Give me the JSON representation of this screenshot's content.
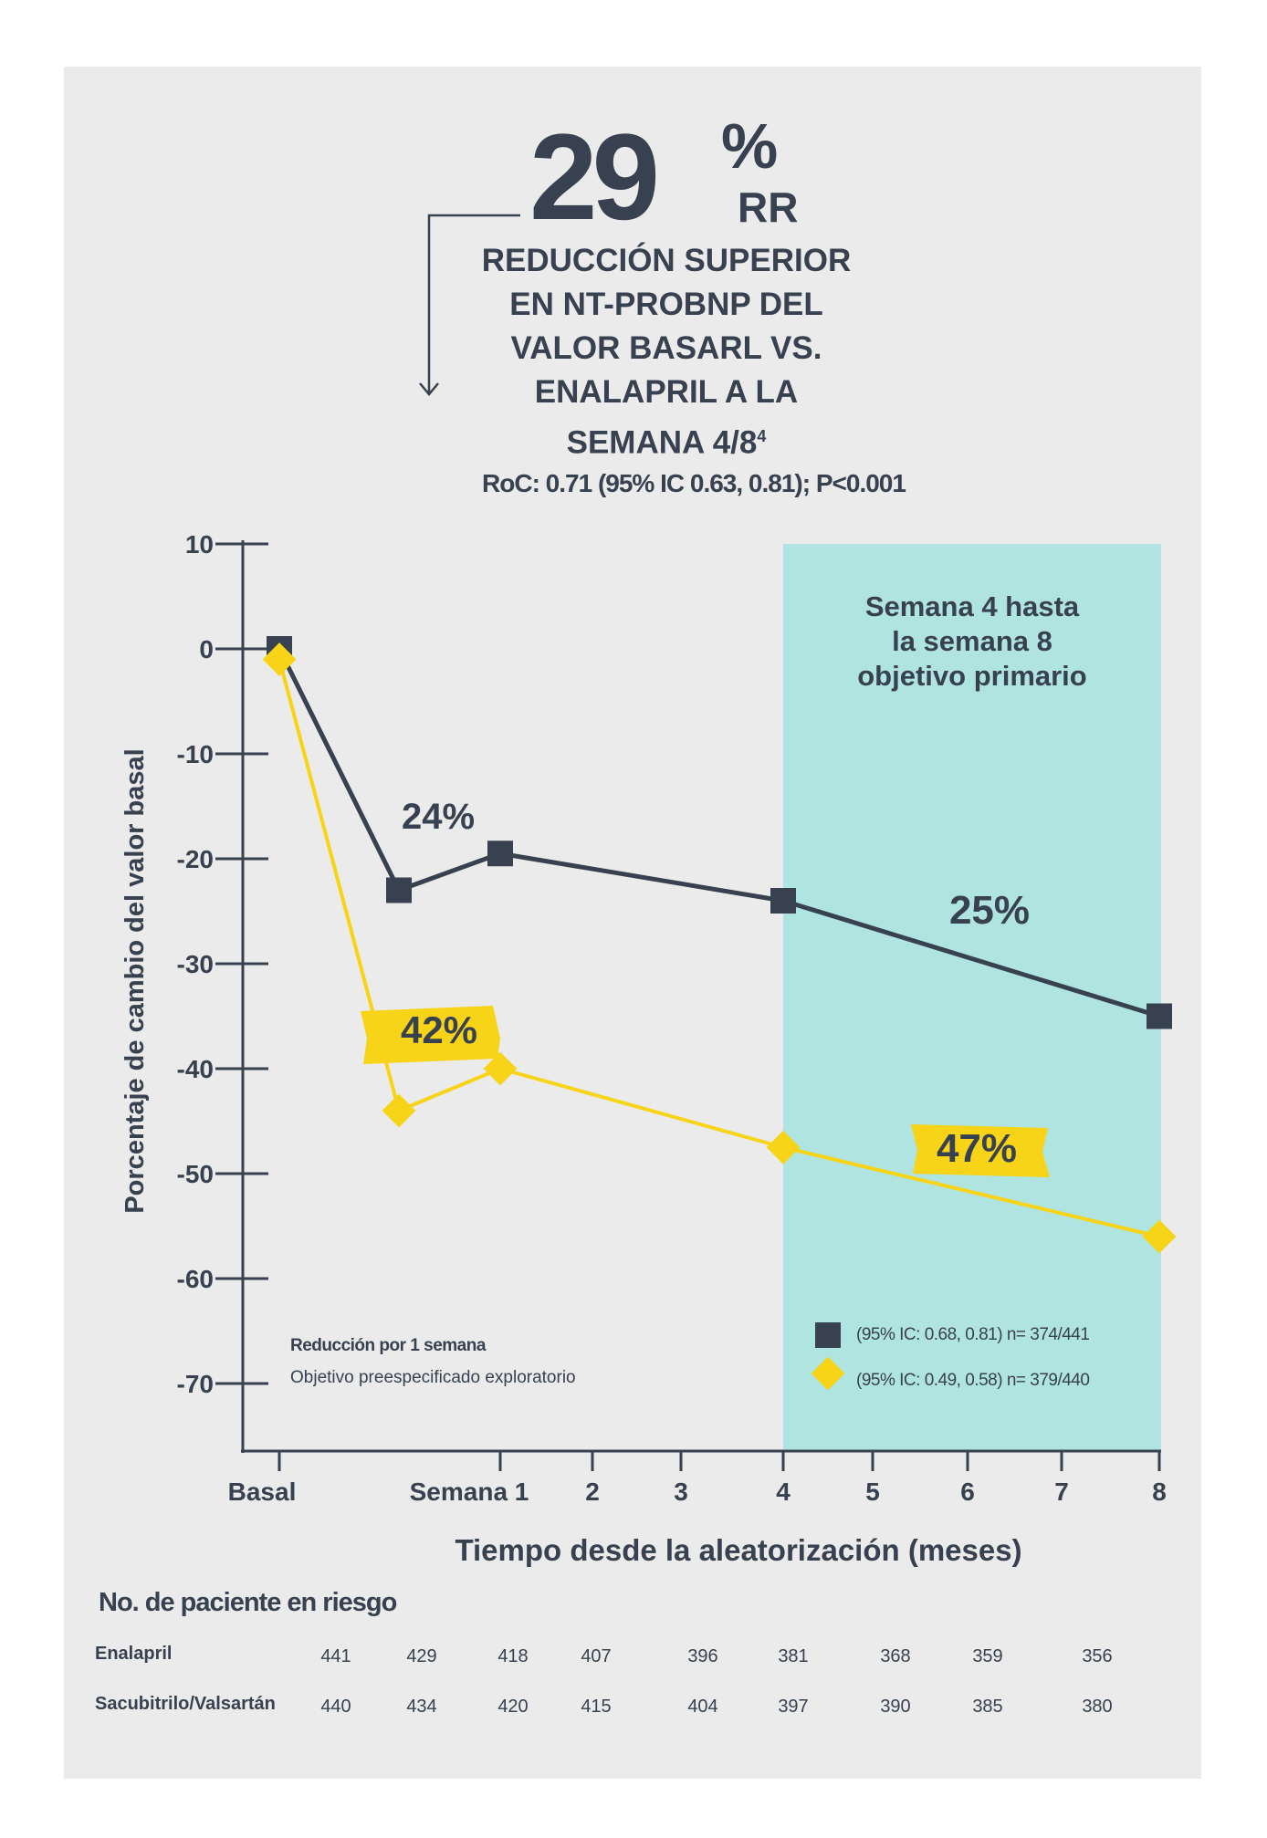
{
  "headline": {
    "number": "29",
    "percent": "%",
    "suffix": "RR",
    "subtitle_lines": [
      "REDUCCIÓN SUPERIOR",
      "EN NT-PROBNP DEL",
      "VALOR BASARL VS.",
      "ENALAPRIL A LA",
      "SEMANA 4/8"
    ],
    "subtitle_sup": "4",
    "roc_text": "RoC: 0.71 (95% IC 0.63, 0.81); P<0.001"
  },
  "colors": {
    "panel": "#ebebeb",
    "navy": "#37414f",
    "yellow": "#f7d417",
    "shade": "#b0e4e0"
  },
  "chart_data": {
    "type": "line",
    "ylabel": "Porcentaje de cambio del valor basal",
    "xlabel": "Tiempo desde la aleatorización (meses)",
    "ylim": [
      -77,
      10
    ],
    "y_ticks": [
      10,
      0,
      -10,
      -20,
      -30,
      -40,
      -50,
      -60,
      -70
    ],
    "x_tick_labels": [
      "Basal",
      "Semana 1",
      "2",
      "3",
      "4",
      "5",
      "6",
      "7",
      "8"
    ],
    "shaded_region": {
      "from": "4",
      "to": "8",
      "label_lines": [
        "Semana 4 hasta",
        "la semana 8",
        "objetivo primario"
      ]
    },
    "series": [
      {
        "marker": "square",
        "color": "#37414f",
        "legend": "(95% IC: 0.68, 0.81) n= 374/441",
        "points": [
          {
            "x": "Basal",
            "y": 0
          },
          {
            "x": "0.5",
            "y": -23
          },
          {
            "x": "Semana 1",
            "y": -19.5
          },
          {
            "x": "4",
            "y": -24
          },
          {
            "x": "8",
            "y": -35
          }
        ]
      },
      {
        "marker": "diamond",
        "color": "#f7d417",
        "legend": "(95% IC: 0.49, 0.58) n= 379/440",
        "points": [
          {
            "x": "Basal",
            "y": -1
          },
          {
            "x": "0.5",
            "y": -44
          },
          {
            "x": "Semana 1",
            "y": -40
          },
          {
            "x": "4",
            "y": -47.5
          },
          {
            "x": "8",
            "y": -56
          }
        ]
      }
    ],
    "annotations": [
      {
        "text": "24%",
        "style": "plain"
      },
      {
        "text": "25%",
        "style": "plain"
      },
      {
        "text": "42%",
        "style": "highlight"
      },
      {
        "text": "47%",
        "style": "highlight"
      }
    ],
    "note_title": "Reducción por 1 semana",
    "note_subtitle": "Objetivo preespecificado exploratorio"
  },
  "risk_table": {
    "title": "No. de paciente en riesgo",
    "rows": [
      {
        "label": "Enalapril",
        "values": [
          "441",
          "429",
          "418",
          "407",
          "396",
          "381",
          "368",
          "359",
          "356"
        ]
      },
      {
        "label": "Sacubitrilo/Valsartán",
        "values": [
          "440",
          "434",
          "420",
          "415",
          "404",
          "397",
          "390",
          "385",
          "380"
        ]
      }
    ]
  }
}
